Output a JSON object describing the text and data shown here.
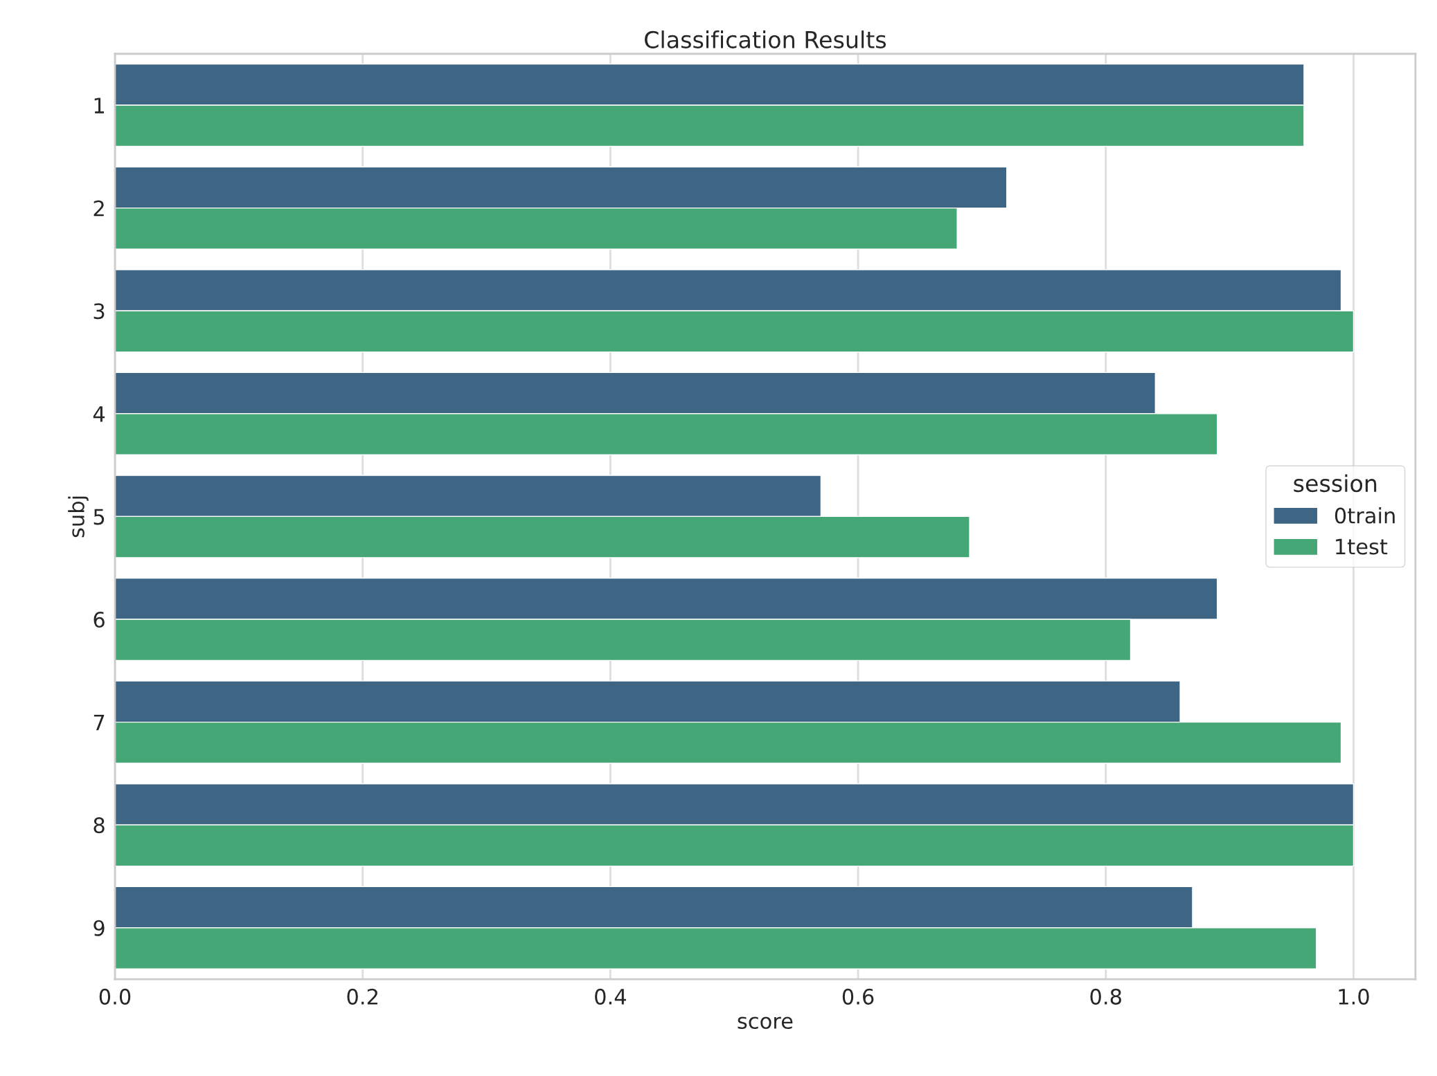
{
  "chart_data": {
    "type": "bar",
    "orientation": "horizontal",
    "title": "Classification Results",
    "xlabel": "score",
    "ylabel": "subj",
    "legend_title": "session",
    "categories": [
      "1",
      "2",
      "3",
      "4",
      "5",
      "6",
      "7",
      "8",
      "9"
    ],
    "series": [
      {
        "name": "0train",
        "color": "#3e6584",
        "values": [
          0.96,
          0.72,
          0.99,
          0.84,
          0.57,
          0.89,
          0.86,
          1.0,
          0.87
        ]
      },
      {
        "name": "1test",
        "color": "#45a776",
        "values": [
          0.96,
          0.68,
          1.0,
          0.89,
          0.69,
          0.82,
          0.99,
          1.0,
          0.97
        ]
      }
    ],
    "xlim": [
      0,
      1.05
    ],
    "xticks": [
      {
        "value": 0,
        "label": "0.0"
      },
      0.2,
      0.4,
      0.6,
      0.8,
      {
        "value": 1,
        "label": "1.0"
      }
    ],
    "grid": "x",
    "legend": "right"
  }
}
